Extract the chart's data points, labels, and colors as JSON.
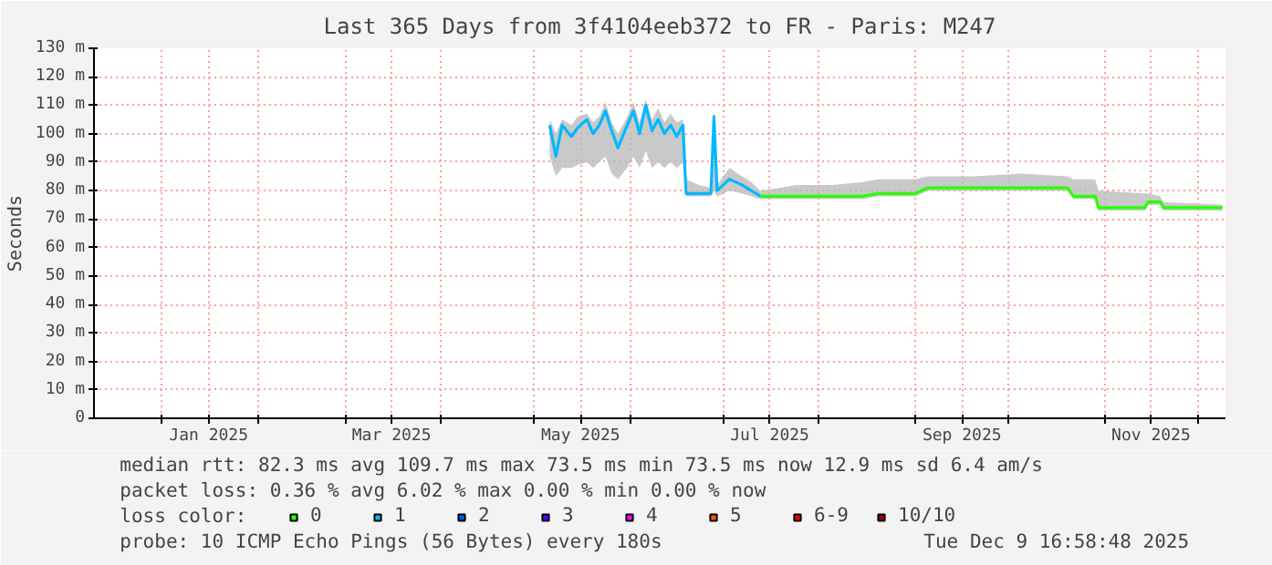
{
  "chart_data": {
    "type": "line",
    "title": "Last 365 Days from 3f4104eeb372 to FR - Paris: M247",
    "ylabel": "Seconds",
    "legend_title": "loss color:",
    "legend": "bottom",
    "grid": true,
    "xlim": [
      "2024-12-10",
      "2025-12-10"
    ],
    "xticks": [
      {
        "value": "2025-01-01",
        "label": null
      },
      {
        "value": "2025-01-16",
        "label": "Jan 2025"
      },
      {
        "value": "2025-02-01",
        "label": null
      },
      {
        "value": "2025-03-01",
        "label": null
      },
      {
        "value": "2025-03-16",
        "label": "Mar 2025"
      },
      {
        "value": "2025-04-01",
        "label": null
      },
      {
        "value": "2025-05-01",
        "label": null
      },
      {
        "value": "2025-05-16",
        "label": "May 2025"
      },
      {
        "value": "2025-06-01",
        "label": null
      },
      {
        "value": "2025-07-01",
        "label": null
      },
      {
        "value": "2025-07-16",
        "label": "Jul 2025"
      },
      {
        "value": "2025-08-01",
        "label": null
      },
      {
        "value": "2025-09-01",
        "label": null
      },
      {
        "value": "2025-09-16",
        "label": "Sep 2025"
      },
      {
        "value": "2025-10-01",
        "label": null
      },
      {
        "value": "2025-11-01",
        "label": null
      },
      {
        "value": "2025-11-16",
        "label": "Nov 2025"
      },
      {
        "value": "2025-12-01",
        "label": null
      }
    ],
    "ylim": [
      0,
      130
    ],
    "yticks": [
      0,
      {
        "value": 10,
        "label": "10 m"
      },
      {
        "value": 20,
        "label": "20 m"
      },
      {
        "value": 30,
        "label": "30 m"
      },
      {
        "value": 40,
        "label": "40 m"
      },
      {
        "value": 50,
        "label": "50 m"
      },
      {
        "value": 60,
        "label": "60 m"
      },
      {
        "value": 70,
        "label": "70 m"
      },
      {
        "value": 80,
        "label": "80 m"
      },
      {
        "value": 90,
        "label": "90 m"
      },
      {
        "value": 100,
        "label": "100 m"
      },
      {
        "value": 110,
        "label": "110 m"
      },
      {
        "value": 120,
        "label": "120 m"
      },
      {
        "value": 130,
        "label": "130 m"
      }
    ],
    "series": [
      {
        "name": "0",
        "color": "#26ff00",
        "x": [
          "2025-07-13",
          "2025-07-25",
          "2025-08-05",
          "2025-08-15",
          "2025-08-20",
          "2025-09-01",
          "2025-09-05",
          "2025-09-20",
          "2025-10-05",
          "2025-10-20",
          "2025-10-22",
          "2025-10-29",
          "2025-10-30",
          "2025-11-14",
          "2025-11-15",
          "2025-11-19",
          "2025-11-20",
          "2025-12-09"
        ],
        "values": [
          78,
          78,
          78,
          78,
          79,
          79,
          81,
          81,
          81,
          81,
          78,
          78,
          74,
          74,
          76,
          76,
          74,
          74
        ],
        "lower": [
          77,
          77,
          77,
          77,
          78,
          78,
          80,
          80,
          80,
          80,
          77,
          77,
          73,
          73,
          75,
          75,
          73,
          73
        ],
        "upper": [
          80,
          82,
          82,
          83,
          84,
          84,
          85,
          85,
          86,
          85,
          84,
          84,
          80,
          79,
          79,
          78,
          76,
          75
        ]
      },
      {
        "name": "1",
        "color": "#00b8ff",
        "x": [
          "2025-05-06",
          "2025-05-08",
          "2025-05-10",
          "2025-05-13",
          "2025-05-15",
          "2025-05-18",
          "2025-05-20",
          "2025-05-22",
          "2025-05-24",
          "2025-05-26",
          "2025-05-28",
          "2025-05-31",
          "2025-06-02",
          "2025-06-04",
          "2025-06-06",
          "2025-06-08",
          "2025-06-10",
          "2025-06-12",
          "2025-06-14",
          "2025-06-16",
          "2025-06-18",
          "2025-06-19",
          "2025-06-23",
          "2025-06-27",
          "2025-06-28",
          "2025-06-29",
          "2025-07-03",
          "2025-07-07",
          "2025-07-10",
          "2025-07-13"
        ],
        "values": [
          103,
          92,
          103,
          99,
          102,
          105,
          100,
          103,
          108,
          101,
          95,
          103,
          108,
          100,
          110,
          101,
          105,
          100,
          103,
          99,
          103,
          79,
          79,
          79,
          106,
          80,
          84,
          82,
          80,
          78
        ],
        "lower": [
          92,
          85,
          88,
          88,
          89,
          90,
          88,
          90,
          92,
          86,
          84,
          88,
          92,
          88,
          94,
          88,
          90,
          88,
          90,
          88,
          90,
          78,
          78,
          78,
          80,
          78,
          80,
          79,
          78,
          77
        ],
        "upper": [
          105,
          100,
          105,
          103,
          106,
          107,
          104,
          106,
          111,
          104,
          100,
          106,
          111,
          104,
          112,
          105,
          109,
          104,
          107,
          104,
          105,
          84,
          82,
          81,
          107,
          82,
          88,
          85,
          83,
          80
        ]
      },
      {
        "name": "2",
        "color": "#0059ff"
      },
      {
        "name": "3",
        "color": "#5e00ff"
      },
      {
        "name": "4",
        "color": "#ff00ff"
      },
      {
        "name": "5",
        "color": "#ff5e00"
      },
      {
        "name": "6-9",
        "color": "#ff0000"
      },
      {
        "name": "10/10",
        "color": "#a10000"
      }
    ],
    "annotations": [
      "median rtt:  82.3 ms avg  109.7 ms max  73.5 ms min  73.5 ms now  12.9 ms sd  6.4  am/s",
      "packet loss: 0.36 % avg  6.02 % max  0.00 % min  0.00 % now",
      "probe:       10 ICMP Echo Pings (56 Bytes) every 180s",
      "Tue Dec  9 16:58:48 2025"
    ]
  }
}
